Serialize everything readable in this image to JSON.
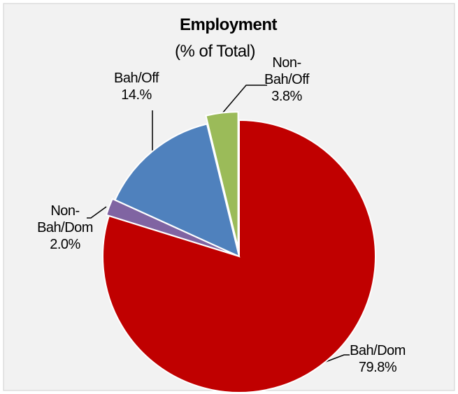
{
  "chart_data": {
    "type": "pie",
    "title": "Employment",
    "subtitle": "(% of Total)",
    "categories": [
      "Bah/Dom",
      "Non-Bah/Dom",
      "Bah/Off",
      "Non-Bah/Off"
    ],
    "values": [
      79.8,
      2.0,
      14.4,
      3.8
    ],
    "value_labels": [
      "79.8%",
      "2.0%",
      "14.%",
      "3.8%"
    ],
    "colors": [
      "#c00000",
      "#8064a2",
      "#4f81bd",
      "#9bbb59"
    ]
  }
}
